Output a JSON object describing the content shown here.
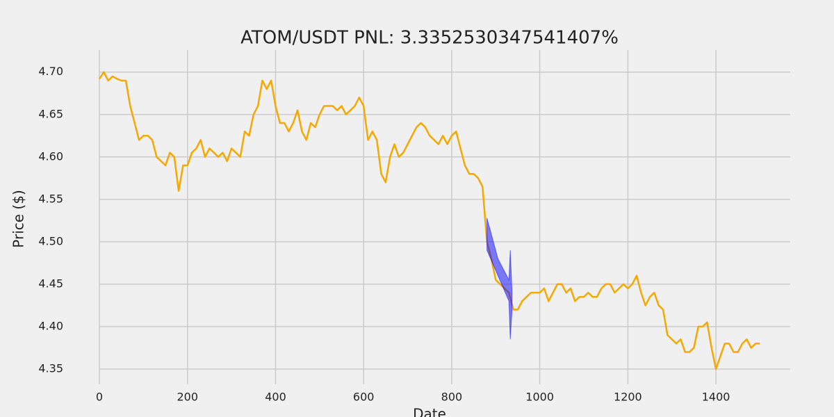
{
  "chart_data": {
    "type": "line",
    "title": "ATOM/USDT  PNL: 3.3352530347541407%",
    "x_label": "Date",
    "y_label": "Price ($)",
    "x": [
      0,
      10,
      20,
      30,
      40,
      50,
      60,
      70,
      80,
      90,
      100,
      110,
      120,
      130,
      140,
      150,
      160,
      170,
      180,
      190,
      200,
      210,
      220,
      230,
      240,
      250,
      260,
      270,
      280,
      290,
      300,
      310,
      320,
      330,
      340,
      350,
      360,
      370,
      380,
      390,
      400,
      410,
      420,
      430,
      440,
      450,
      460,
      470,
      480,
      490,
      500,
      510,
      520,
      530,
      540,
      550,
      560,
      570,
      580,
      590,
      600,
      610,
      620,
      630,
      640,
      650,
      660,
      670,
      680,
      690,
      700,
      710,
      720,
      730,
      740,
      750,
      760,
      770,
      780,
      790,
      800,
      810,
      820,
      830,
      840,
      850,
      860,
      870,
      880,
      890,
      900,
      910,
      920,
      930,
      940,
      950,
      960,
      970,
      980,
      990,
      1000,
      1010,
      1020,
      1030,
      1040,
      1050,
      1060,
      1070,
      1080,
      1090,
      1100,
      1110,
      1120,
      1130,
      1140,
      1150,
      1160,
      1170,
      1180,
      1190,
      1200,
      1210,
      1220,
      1230,
      1240,
      1250,
      1260,
      1270,
      1280,
      1290,
      1300,
      1310,
      1320,
      1330,
      1340,
      1350,
      1360,
      1370,
      1380,
      1390,
      1400,
      1410,
      1420,
      1430,
      1440,
      1450,
      1460,
      1470,
      1480,
      1490,
      1500
    ],
    "series": [
      {
        "color": "#f5a800",
        "values": [
          4.692,
          4.7,
          4.69,
          4.695,
          4.692,
          4.69,
          4.69,
          4.66,
          4.64,
          4.62,
          4.625,
          4.625,
          4.62,
          4.6,
          4.595,
          4.59,
          4.605,
          4.6,
          4.56,
          4.59,
          4.59,
          4.605,
          4.61,
          4.62,
          4.6,
          4.61,
          4.605,
          4.6,
          4.605,
          4.595,
          4.61,
          4.605,
          4.6,
          4.63,
          4.625,
          4.65,
          4.66,
          4.69,
          4.68,
          4.69,
          4.66,
          4.64,
          4.64,
          4.63,
          4.64,
          4.655,
          4.63,
          4.62,
          4.64,
          4.635,
          4.65,
          4.66,
          4.66,
          4.66,
          4.655,
          4.66,
          4.65,
          4.655,
          4.66,
          4.67,
          4.66,
          4.62,
          4.63,
          4.62,
          4.58,
          4.57,
          4.6,
          4.615,
          4.6,
          4.605,
          4.615,
          4.625,
          4.635,
          4.64,
          4.635,
          4.625,
          4.62,
          4.615,
          4.625,
          4.615,
          4.625,
          4.63,
          4.61,
          4.59,
          4.58,
          4.58,
          4.575,
          4.565,
          4.5,
          4.48,
          4.455,
          4.45,
          4.445,
          4.44,
          4.42,
          4.42,
          4.43,
          4.435,
          4.44,
          4.44,
          4.44,
          4.445,
          4.43,
          4.44,
          4.45,
          4.45,
          4.44,
          4.445,
          4.43,
          4.435,
          4.435,
          4.44,
          4.435,
          4.435,
          4.445,
          4.45,
          4.45,
          4.44,
          4.445,
          4.45,
          4.445,
          4.45,
          4.46,
          4.44,
          4.425,
          4.435,
          4.44,
          4.425,
          4.42,
          4.39,
          4.385,
          4.38,
          4.385,
          4.37,
          4.37,
          4.375,
          4.4,
          4.4,
          4.405,
          4.375,
          4.35,
          4.365,
          4.38,
          4.38,
          4.37,
          4.37,
          4.38,
          4.385,
          4.375,
          4.38,
          4.38
        ]
      }
    ],
    "band": {
      "color": "#0000ff",
      "x": [
        880,
        905,
        930,
        933,
        937
      ],
      "upper": [
        4.528,
        4.48,
        4.455,
        4.49,
        4.44
      ],
      "lower": [
        4.49,
        4.46,
        4.43,
        4.385,
        4.42
      ]
    },
    "xlim": [
      -75,
      1575
    ],
    "ylim": [
      4.329,
      4.726
    ],
    "xticks": [
      0,
      200,
      400,
      600,
      800,
      1000,
      1200,
      1400
    ],
    "yticks": [
      4.35,
      {
        "value": 4.4,
        "label": "4.40"
      },
      4.45,
      {
        "value": 4.5,
        "label": "4.50"
      },
      4.55,
      {
        "value": 4.6,
        "label": "4.60"
      },
      4.65,
      {
        "value": 4.7,
        "label": "4.70"
      }
    ],
    "grid": true
  }
}
